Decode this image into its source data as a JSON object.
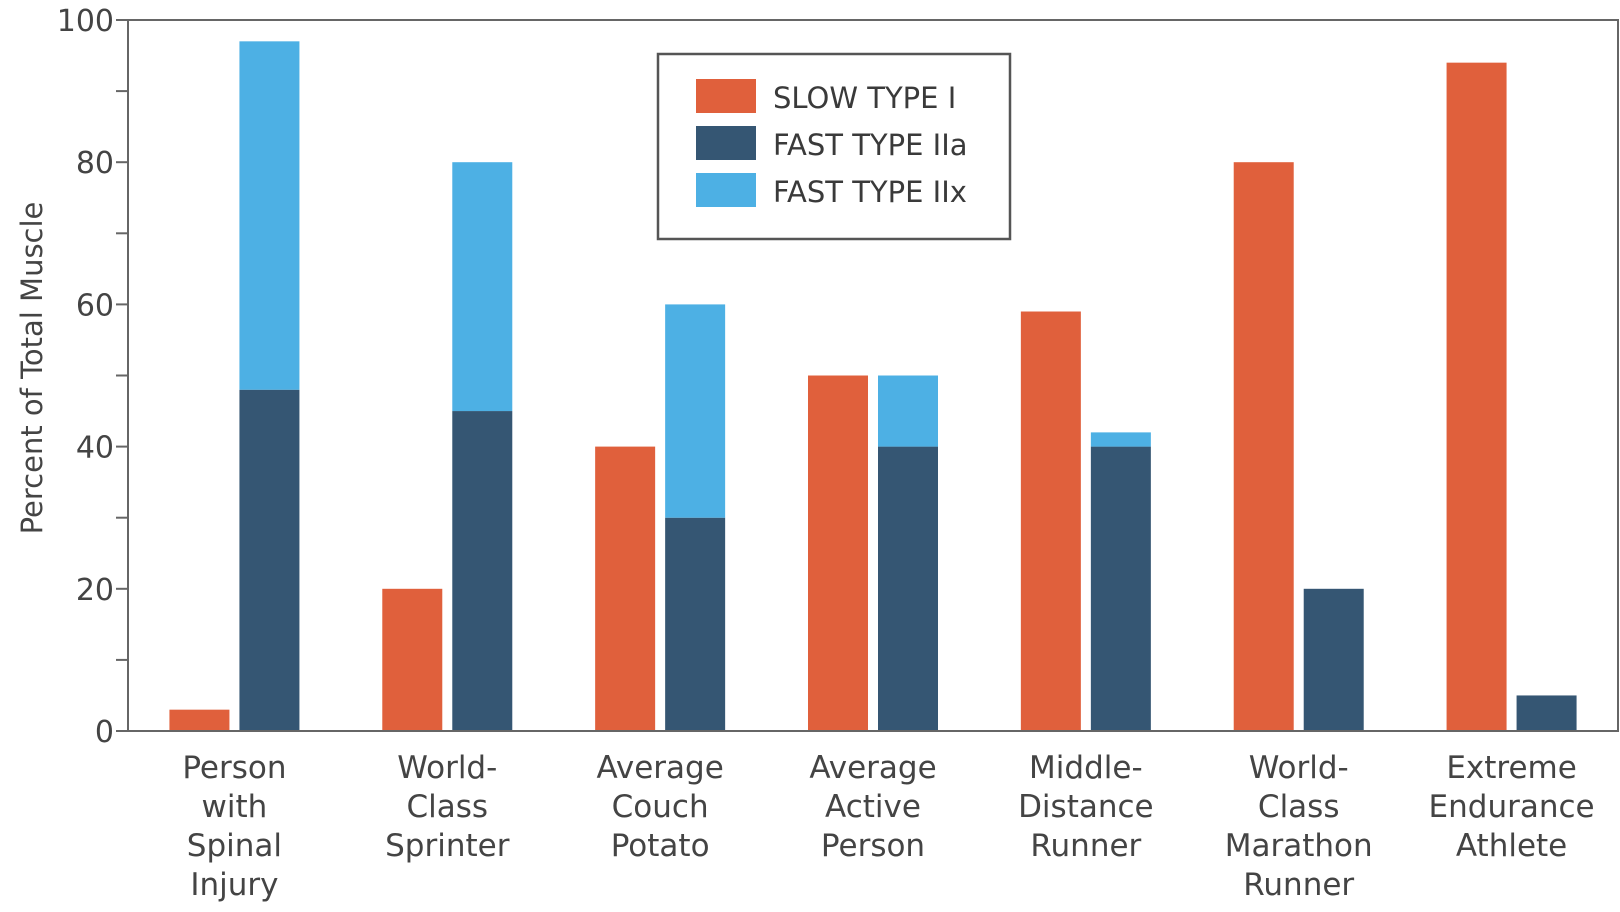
{
  "chart_data": {
    "type": "bar",
    "title": "",
    "xlabel": "",
    "ylabel": "Percent of Total Muscle",
    "ylim": [
      0,
      100
    ],
    "yticks": [
      0,
      20,
      40,
      60,
      80,
      100
    ],
    "grid": false,
    "legend_position": "top-center",
    "categories": [
      "Person with Spinal Injury",
      "World-Class Sprinter",
      "Average Couch Potato",
      "Average Active Person",
      "Middle-Distance Runner",
      "World-Class Marathon Runner",
      "Extreme Endurance Athlete"
    ],
    "category_lines": [
      [
        "Person",
        "with",
        "Spinal",
        "Injury"
      ],
      [
        "World-",
        "Class",
        "Sprinter"
      ],
      [
        "Average",
        "Couch",
        "Potato"
      ],
      [
        "Average",
        "Active",
        "Person"
      ],
      [
        "Middle-",
        "Distance",
        "Runner"
      ],
      [
        "World-",
        "Class",
        "Marathon",
        "Runner"
      ],
      [
        "Extreme",
        "Endurance",
        "Athlete"
      ]
    ],
    "series": [
      {
        "name": "SLOW TYPE I",
        "color": "#e0603c",
        "values": [
          3,
          20,
          40,
          50,
          59,
          80,
          94
        ]
      },
      {
        "name": "FAST TYPE IIa",
        "color": "#355673",
        "values": [
          48,
          45,
          30,
          40,
          40,
          20,
          5
        ]
      },
      {
        "name": "FAST TYPE IIx",
        "color": "#4db0e4",
        "values": [
          49,
          35,
          30,
          10,
          2,
          0,
          0
        ]
      }
    ],
    "stacking": "Slow Type I drawn as its own bar; Fast Type IIa and Fast Type IIx stacked in a second bar"
  }
}
